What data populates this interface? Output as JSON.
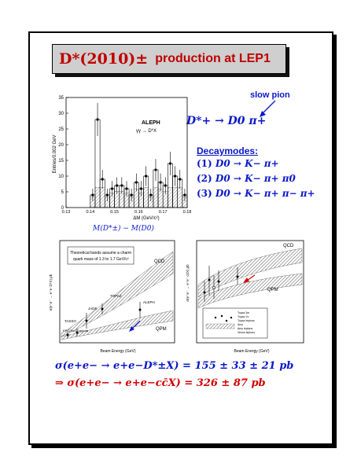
{
  "title": {
    "math": "D*(2010)±",
    "text": "production at LEP1"
  },
  "slow_pion": {
    "label": "slow pion"
  },
  "decay_chain": "D*+ → D0 π+",
  "decaymodes": {
    "header": "Decaymodes:",
    "modes": [
      {
        "num": "(1)",
        "formula": "D0 → K− π+"
      },
      {
        "num": "(2)",
        "formula": "D0 → K− π+ π0"
      },
      {
        "num": "(3)",
        "formula": "D0 → K− π+ π− π+"
      }
    ]
  },
  "histogram": {
    "experiment": "ALEPH",
    "process": "γγ → D*X",
    "ylabel": "Entries/0.002 GeV",
    "xlabel": "ΔM (GeV/c²)",
    "caption": "M(D*±) − M(D0)"
  },
  "plot_left": {
    "note_line1": "Theoretical bands assume a charm",
    "note_line2": "quark mass of 1.3 to 1.7 GeV/c²",
    "qcd": "QCD",
    "qpm": "QPM",
    "xlabel": "Beam Energy (GeV)",
    "ylabel": "σ(e⁺e⁻ → e⁺e⁻D*X) pb",
    "experiments": [
      "TOPAZ",
      "JADE",
      "TASSO",
      "EPC/Two Gamma",
      "ALEPH"
    ]
  },
  "plot_right": {
    "qcd": "QCD",
    "qpm": "QPM",
    "xlabel": "Beam Energy (GeV)",
    "ylabel": "σ(e⁺e⁻ → e⁺e⁻ cc̄X) pb",
    "legend": [
      "Topaz 3m",
      "Topaz Vc",
      "Topaz leptons",
      "Amy",
      "Amy leptons",
      "Venus leptons"
    ]
  },
  "result1": "σ(e+e− → e+e−D*±X) = 155 ± 33 ± 21 pb",
  "result2": "⇒  σ(e+e− → e+e−cc̄X) = 326 ± 87 pb",
  "chart_data": {
    "type": "bar",
    "title": "ALEPH",
    "xlabel": "ΔM (GeV/c²)",
    "ylabel": "Entries/0.002 GeV",
    "xlim": [
      0.13,
      0.18
    ],
    "ylim": [
      0,
      35
    ],
    "x_ticks": [
      "0.13",
      "0.14",
      "0.15",
      "0.16",
      "0.17",
      "0.18"
    ],
    "y_ticks": [
      "0",
      "5",
      "10",
      "15",
      "20",
      "25",
      "30",
      "35"
    ],
    "categories": [
      0.141,
      0.143,
      0.145,
      0.147,
      0.149,
      0.151,
      0.153,
      0.155,
      0.157,
      0.159,
      0.161,
      0.163,
      0.165,
      0.167,
      0.169,
      0.171,
      0.173,
      0.175,
      0.177,
      0.179
    ],
    "series": [
      {
        "values": [
          4,
          28,
          9,
          4,
          6,
          7,
          7,
          6,
          4,
          8,
          6,
          10,
          4,
          12,
          8,
          7,
          14,
          10,
          9,
          4
        ]
      }
    ]
  }
}
